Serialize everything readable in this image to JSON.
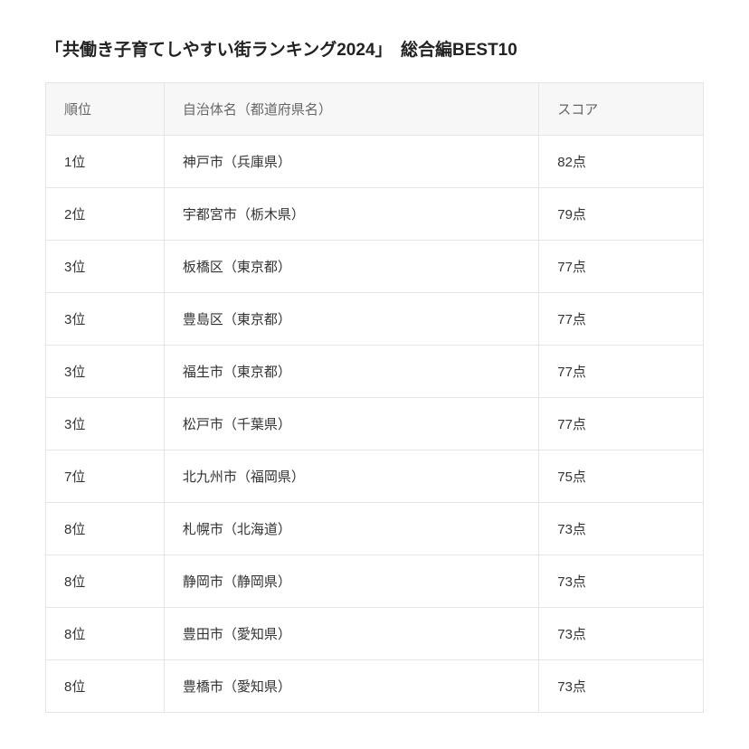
{
  "title": "「共働き子育てしやすい街ランキング2024」　総合編BEST10",
  "table": {
    "columns": {
      "rank": "順位",
      "name": "自治体名（都道府県名）",
      "score": "スコア"
    },
    "rows": [
      {
        "rank": "1位",
        "name": "神戸市（兵庫県）",
        "score": "82点"
      },
      {
        "rank": "2位",
        "name": "宇都宮市（栃木県）",
        "score": "79点"
      },
      {
        "rank": "3位",
        "name": "板橋区（東京都）",
        "score": "77点"
      },
      {
        "rank": "3位",
        "name": "豊島区（東京都）",
        "score": "77点"
      },
      {
        "rank": "3位",
        "name": "福生市（東京都）",
        "score": "77点"
      },
      {
        "rank": "3位",
        "name": "松戸市（千葉県）",
        "score": "77点"
      },
      {
        "rank": "7位",
        "name": "北九州市（福岡県）",
        "score": "75点"
      },
      {
        "rank": "8位",
        "name": "札幌市（北海道）",
        "score": "73点"
      },
      {
        "rank": "8位",
        "name": "静岡市（静岡県）",
        "score": "73点"
      },
      {
        "rank": "8位",
        "name": "豊田市（愛知県）",
        "score": "73点"
      },
      {
        "rank": "8位",
        "name": "豊橋市（愛知県）",
        "score": "73点"
      }
    ],
    "styling": {
      "header_bg": "#f7f7f7",
      "border_color": "#e5e5e5",
      "cell_bg": "#ffffff",
      "header_text_color": "#666666",
      "cell_text_color": "#333333",
      "font_size_title": 19,
      "font_size_cell": 15,
      "column_widths": [
        "18%",
        "57%",
        "25%"
      ]
    }
  }
}
